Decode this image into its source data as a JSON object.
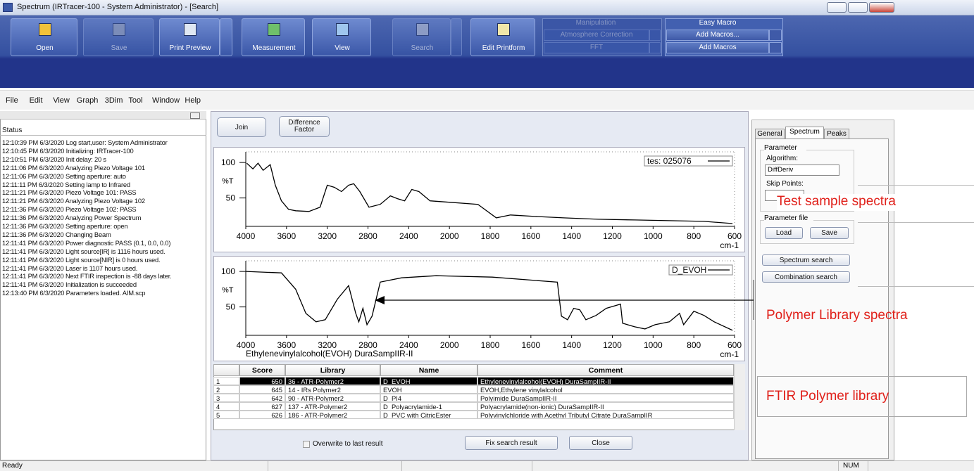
{
  "window": {
    "title": "Spectrum (IRTracer-100 - System Administrator) - [Search]"
  },
  "toolbar": {
    "buttons": [
      "Open",
      "Save",
      "Print Preview",
      "Measurement",
      "View",
      "Search",
      "Edit Printform"
    ],
    "manipulation": {
      "title": "Manipulation",
      "items": [
        "Atmosphere Correction",
        "FFT"
      ]
    },
    "easy_macro": {
      "title": "Easy Macro",
      "items": [
        "Add Macros...",
        "Add Macros"
      ]
    }
  },
  "menu": [
    "File",
    "Edit",
    "View",
    "Graph",
    "3Dim",
    "Tool",
    "Window",
    "Help"
  ],
  "status_panel": {
    "title": "Status",
    "log": [
      "12:10:39 PM 6/3/2020 Log start,user: System Administrator",
      "12:10:45 PM 6/3/2020 Initializing: IRTracer-100",
      "12:10:51 PM 6/3/2020 Init delay: 20 s",
      "12:11:06 PM 6/3/2020 Analyzing Piezo Voltage 101",
      "12:11:06 PM 6/3/2020 Setting aperture: auto",
      "12:11:11 PM 6/3/2020 Setting lamp to Infrared",
      "12:11:21 PM 6/3/2020 Piezo Voltage 101: PASS",
      "12:11:21 PM 6/3/2020 Analyzing Piezo Voltage 102",
      "12:11:36 PM 6/3/2020 Piezo Voltage 102: PASS",
      "12:11:36 PM 6/3/2020 Analyzing Power Spectrum",
      "12:11:36 PM 6/3/2020 Setting aperture: open",
      "12:11:36 PM 6/3/2020 Changing Beam",
      "12:11:41 PM 6/3/2020 Power diagnostic PASS (0.1, 0.0, 0.0)",
      "12:11:41 PM 6/3/2020 Light source[IR] is 1116 hours used.",
      "12:11:41 PM 6/3/2020 Light source[NIR] is 0 hours used.",
      "12:11:41 PM 6/3/2020 Laser is 1107 hours used.",
      "12:11:41 PM 6/3/2020 Next FTIR inspection is -88 days later.",
      "12:11:41 PM 6/3/2020 Initialization is succeeded",
      "12:13:40 PM 6/3/2020 Parameters loaded. AIM.scp"
    ]
  },
  "buttons": [
    "Join",
    "Difference Factor"
  ],
  "chart_data": [
    {
      "type": "line",
      "ylabel": "%T",
      "xlabel": "cm-1",
      "xlim": [
        4000,
        600
      ],
      "xbreak": 2000,
      "ylim": [
        10,
        115
      ],
      "xticks": [
        4000,
        3600,
        3200,
        2800,
        2400,
        2000,
        1800,
        1600,
        1400,
        1200,
        1000,
        800,
        600
      ],
      "yticks": [
        100,
        50
      ],
      "x": [
        3990,
        3930,
        3880,
        3830,
        3760,
        3710,
        3650,
        3580,
        3510,
        3380,
        3270,
        3200,
        3130,
        3060,
        2990,
        2940,
        2880,
        2790,
        2680,
        2580,
        2510,
        2440,
        2370,
        2300,
        2190,
        2000,
        1860,
        1770,
        1700,
        1580,
        1440,
        1270,
        1090,
        920,
        750,
        610
      ],
      "series": [
        {
          "name": "tes: 025076",
          "color": "#000000",
          "values": [
            99,
            91,
            99,
            89,
            97,
            68,
            46,
            34,
            32,
            31,
            37,
            68,
            65,
            59,
            68,
            70,
            59,
            37,
            41,
            53,
            49,
            46,
            62,
            59,
            46,
            44,
            41,
            22,
            26,
            24,
            22,
            20,
            19,
            18,
            17,
            14
          ]
        }
      ]
    },
    {
      "type": "line",
      "ylabel": "%T",
      "xlabel": "cm-1",
      "caption": "Ethylenevinylalcohol(EVOH) DuraSampIIR-II",
      "xlim": [
        4000,
        600
      ],
      "xbreak": 2000,
      "ylim": [
        10,
        115
      ],
      "xticks": [
        4000,
        3600,
        3200,
        2800,
        2400,
        2000,
        1800,
        1600,
        1400,
        1200,
        1000,
        800,
        600
      ],
      "yticks": [
        100,
        50
      ],
      "x": [
        4000,
        3650,
        3510,
        3410,
        3310,
        3220,
        3100,
        2990,
        2920,
        2890,
        2850,
        2810,
        2760,
        2680,
        2470,
        2130,
        1790,
        1470,
        1450,
        1420,
        1390,
        1360,
        1330,
        1280,
        1230,
        1160,
        1150,
        1090,
        1040,
        990,
        920,
        870,
        850,
        800,
        750,
        700,
        610
      ],
      "series": [
        {
          "name": "D_EVOH",
          "color": "#000000",
          "values": [
            100,
            98,
            75,
            41,
            29,
            32,
            61,
            80,
            41,
            29,
            48,
            25,
            37,
            85,
            91,
            94,
            92,
            85,
            37,
            32,
            48,
            46,
            32,
            38,
            48,
            54,
            27,
            22,
            19,
            25,
            29,
            41,
            25,
            44,
            38,
            29,
            17
          ]
        }
      ]
    }
  ],
  "table": {
    "headers": [
      "Score",
      "Library",
      "Name",
      "Comment"
    ],
    "rows": [
      [
        1,
        650,
        "36 - ATR-Polymer2",
        "D_EVOH",
        "Ethylenevinylalcohol(EVOH) DuraSampIIR-II"
      ],
      [
        2,
        645,
        "14 - IRs Polymer2",
        "EVOH",
        "EVOH,Ethylene vinylalcohol"
      ],
      [
        3,
        642,
        "90 - ATR-Polymer2",
        "D_PI4",
        "Polyimide DuraSampIIR-II"
      ],
      [
        4,
        627,
        "137 - ATR-Polymer2",
        "D_Polyacrylamide-1",
        "Polyacrylamide(non-ionic) DuraSampIIR-II"
      ],
      [
        5,
        626,
        "186 - ATR-Polymer2",
        "D_PVC with CitricEster",
        "Polyvinylchloride with Acethyl Tributyl Citrate DuraSampIIR"
      ]
    ]
  },
  "bottom": {
    "checkbox": "Overwrite to last result",
    "buttons": [
      "Fix search result",
      "Close"
    ]
  },
  "right_panel": {
    "tabs": [
      "General",
      "Spectrum",
      "Peaks"
    ],
    "parameter": "Parameter",
    "algorithm_label": "Algorithm:",
    "algorithm": "DiffDeriv",
    "skip_label": "Skip Points:",
    "parameter_file": "Parameter file",
    "file_buttons": [
      "Load",
      "Save"
    ],
    "search_buttons": [
      "Spectrum search",
      "Combination search"
    ]
  },
  "annotations": [
    "Test sample spectra",
    "Polymer Library spectra",
    "FTIR Polymer library"
  ],
  "statusbar": {
    "left": "Ready",
    "right": "NUM"
  }
}
